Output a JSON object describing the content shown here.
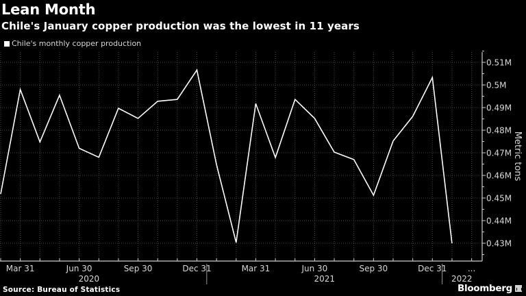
{
  "header": {
    "title": "Lean Month",
    "subtitle": "Chile's January copper production was the lowest in 11 years"
  },
  "legend": {
    "items": [
      {
        "label": "Chile's monthly copper production",
        "color": "#ffffff"
      }
    ]
  },
  "footer": {
    "source": "Source: Bureau of Statistics",
    "brand": "Bloomberg"
  },
  "colors": {
    "background": "#000000",
    "line": "#ffffff",
    "grid": "#4a4a4a",
    "axis": "#cfcfcf",
    "text": "#d8d8d8"
  },
  "chart_data": {
    "type": "line",
    "title": "Lean Month",
    "subtitle": "Chile's January copper production was the lowest in 11 years",
    "xlabel": "",
    "ylabel": "Metric tons",
    "ylim": [
      0.4255,
      0.5145
    ],
    "y_ticks": [
      "0.43M",
      "0.44M",
      "0.45M",
      "0.46M",
      "0.47M",
      "0.48M",
      "0.49M",
      "0.5M",
      "0.51M"
    ],
    "y_tick_values": [
      0.43,
      0.44,
      0.45,
      0.46,
      0.47,
      0.48,
      0.49,
      0.5,
      0.51
    ],
    "x_tick_labels": [
      {
        "label": "Mar 31",
        "index": 1
      },
      {
        "label": "Jun 30",
        "index": 4
      },
      {
        "label": "Sep 30",
        "index": 7
      },
      {
        "label": "Dec 31",
        "index": 10
      },
      {
        "label": "Mar 31",
        "index": 13
      },
      {
        "label": "Jun 30",
        "index": 16
      },
      {
        "label": "Sep 30",
        "index": 19
      },
      {
        "label": "Dec 31",
        "index": 22
      },
      {
        "label": "...",
        "index": 24
      }
    ],
    "year_labels": [
      {
        "label": "2020",
        "index": 4.5
      },
      {
        "label": "2021",
        "index": 16.5
      },
      {
        "label": "2022",
        "index": 23.5
      }
    ],
    "year_separators": [
      10.5,
      22.5
    ],
    "grid": true,
    "legend_position": "top-left",
    "y_axis_position": "right",
    "x": [
      "2020-02",
      "2020-03",
      "2020-04",
      "2020-05",
      "2020-06",
      "2020-07",
      "2020-08",
      "2020-09",
      "2020-10",
      "2020-11",
      "2020-12",
      "2021-01",
      "2021-02",
      "2021-03",
      "2021-04",
      "2021-05",
      "2021-06",
      "2021-07",
      "2021-08",
      "2021-09",
      "2021-10",
      "2021-11",
      "2021-12",
      "2022-01"
    ],
    "series": [
      {
        "name": "Chile's monthly copper production",
        "unit": "million metric tons",
        "values": [
          0.4518,
          0.498,
          0.4748,
          0.4955,
          0.472,
          0.468,
          0.4897,
          0.4852,
          0.4928,
          0.4936,
          0.5066,
          0.4648,
          0.4303,
          0.4918,
          0.4679,
          0.4936,
          0.4852,
          0.4703,
          0.467,
          0.4512,
          0.4752,
          0.4861,
          0.5033,
          0.43
        ]
      }
    ]
  }
}
